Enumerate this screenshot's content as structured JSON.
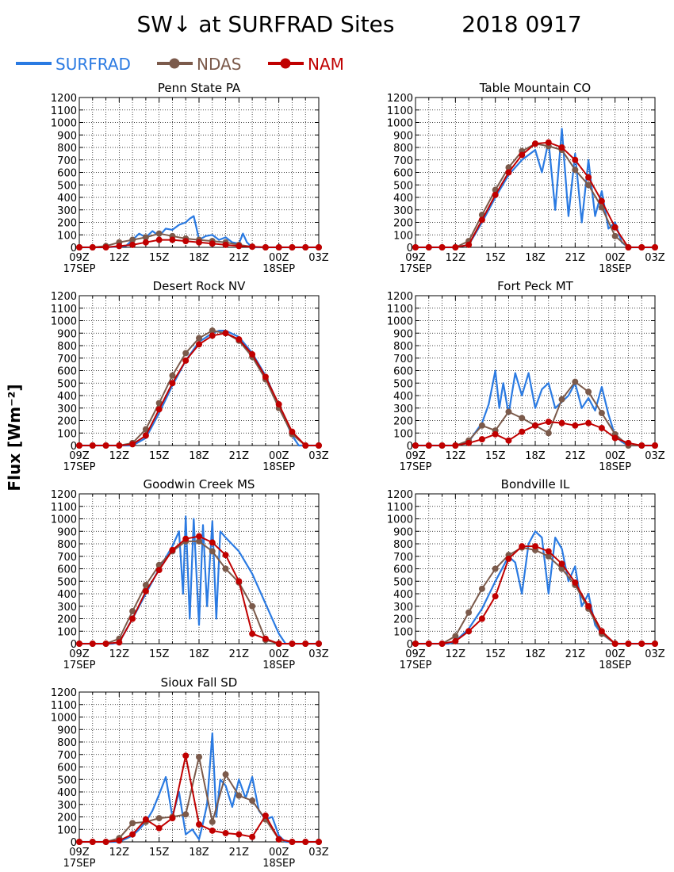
{
  "title": "SW↓ at SURFRAD Sites",
  "date": "2018 0917",
  "ylabel": "Flux [Wm⁻²]",
  "colors": {
    "surfrad": "#2a7ae2",
    "ndas": "#7b5a4b",
    "nam": "#c00000"
  },
  "legend": [
    {
      "name": "SURFRAD",
      "color": "#2a7ae2",
      "marker": false
    },
    {
      "name": "NDAS",
      "color": "#7b5a4b",
      "marker": true
    },
    {
      "name": "NAM",
      "color": "#c00000",
      "marker": true
    }
  ],
  "axes": {
    "x_tick_labels": [
      "09Z",
      "12Z",
      "15Z",
      "18Z",
      "21Z",
      "00Z",
      "03Z"
    ],
    "x_ticks": [
      9,
      12,
      15,
      18,
      21,
      24,
      27
    ],
    "x_date_labels": [
      "17SEP",
      "18SEP"
    ],
    "xlim": [
      9,
      27
    ],
    "ylim": [
      0,
      1200
    ],
    "y_ticks": [
      0,
      100,
      200,
      300,
      400,
      500,
      600,
      700,
      800,
      900,
      1000,
      1100,
      1200
    ],
    "grid": true
  },
  "chart_data": [
    {
      "type": "line",
      "title": "Penn State PA",
      "x_units": "hour UTC from 00Z 17SEP",
      "series": [
        {
          "name": "SURFRAD",
          "x": [
            9,
            11,
            12.5,
            13,
            13.5,
            14,
            14.5,
            15,
            15.5,
            16,
            16.5,
            17,
            17.3,
            17.6,
            17.8,
            18,
            18.5,
            19,
            19.5,
            20,
            20.5,
            21,
            21.3,
            21.6,
            22,
            23,
            24,
            27
          ],
          "y": [
            0,
            0,
            10,
            60,
            110,
            80,
            130,
            90,
            150,
            140,
            180,
            200,
            230,
            250,
            160,
            60,
            90,
            100,
            60,
            80,
            40,
            30,
            110,
            40,
            0,
            0,
            0,
            0
          ]
        },
        {
          "name": "NDAS",
          "x": [
            9,
            10,
            11,
            12,
            13,
            14,
            15,
            16,
            17,
            18,
            19,
            20,
            21,
            22,
            23,
            24,
            25,
            26,
            27
          ],
          "y": [
            0,
            0,
            10,
            40,
            60,
            80,
            110,
            90,
            70,
            60,
            50,
            40,
            20,
            5,
            0,
            0,
            0,
            0,
            0
          ]
        },
        {
          "name": "NAM",
          "x": [
            9,
            10,
            11,
            12,
            13,
            14,
            15,
            16,
            17,
            18,
            19,
            20,
            21,
            22,
            23,
            24,
            25,
            26,
            27
          ],
          "y": [
            0,
            0,
            0,
            10,
            20,
            40,
            60,
            60,
            50,
            40,
            30,
            20,
            10,
            5,
            0,
            0,
            0,
            0,
            0
          ]
        }
      ]
    },
    {
      "type": "line",
      "title": "Table Mountain CO",
      "x_units": "hour UTC from 00Z 17SEP",
      "series": [
        {
          "name": "SURFRAD",
          "x": [
            9,
            12,
            13,
            14,
            15,
            16,
            17,
            18,
            18.5,
            19,
            19.5,
            20,
            20.5,
            21,
            21.5,
            22,
            22.5,
            23,
            23.5,
            24,
            24.5,
            25,
            27
          ],
          "y": [
            0,
            0,
            20,
            200,
            400,
            580,
            700,
            780,
            600,
            850,
            300,
            950,
            250,
            750,
            200,
            700,
            250,
            450,
            150,
            200,
            40,
            0,
            0
          ]
        },
        {
          "name": "NDAS",
          "x": [
            9,
            10,
            11,
            12,
            13,
            14,
            15,
            16,
            17,
            18,
            19,
            20,
            21,
            22,
            23,
            24,
            25,
            26,
            27
          ],
          "y": [
            0,
            0,
            0,
            0,
            50,
            260,
            460,
            640,
            770,
            830,
            810,
            780,
            620,
            500,
            320,
            90,
            0,
            0,
            0
          ]
        },
        {
          "name": "NAM",
          "x": [
            9,
            10,
            11,
            12,
            13,
            14,
            15,
            16,
            17,
            18,
            19,
            20,
            21,
            22,
            23,
            24,
            25,
            26,
            27
          ],
          "y": [
            0,
            0,
            0,
            0,
            20,
            220,
            420,
            600,
            740,
            830,
            840,
            800,
            700,
            560,
            370,
            160,
            0,
            0,
            0
          ]
        }
      ]
    },
    {
      "type": "line",
      "title": "Desert Rock NV",
      "x_units": "hour UTC from 00Z 17SEP",
      "series": [
        {
          "name": "SURFRAD",
          "x": [
            9,
            13,
            14,
            15,
            16,
            17,
            18,
            19,
            19.5,
            20,
            21,
            22,
            23,
            24,
            25,
            25.5,
            27
          ],
          "y": [
            0,
            0,
            60,
            260,
            480,
            680,
            830,
            900,
            920,
            920,
            870,
            740,
            560,
            320,
            80,
            0,
            0
          ]
        },
        {
          "name": "NDAS",
          "x": [
            9,
            10,
            11,
            12,
            13,
            14,
            15,
            16,
            17,
            18,
            19,
            20,
            21,
            22,
            23,
            24,
            25,
            26,
            27
          ],
          "y": [
            0,
            0,
            0,
            0,
            20,
            130,
            340,
            560,
            740,
            860,
            920,
            900,
            840,
            710,
            530,
            300,
            90,
            0,
            0
          ]
        },
        {
          "name": "NAM",
          "x": [
            9,
            10,
            11,
            12,
            13,
            14,
            15,
            16,
            17,
            18,
            19,
            20,
            21,
            22,
            23,
            24,
            25,
            26,
            27
          ],
          "y": [
            0,
            0,
            0,
            0,
            10,
            80,
            290,
            500,
            680,
            810,
            880,
            900,
            850,
            730,
            550,
            330,
            110,
            0,
            0
          ]
        }
      ]
    },
    {
      "type": "line",
      "title": "Fort Peck MT",
      "x_units": "hour UTC from 00Z 17SEP",
      "series": [
        {
          "name": "SURFRAD",
          "x": [
            9,
            12,
            13,
            14,
            14.5,
            15,
            15.3,
            15.6,
            16,
            16.5,
            17,
            17.5,
            18,
            18.5,
            19,
            19.5,
            20,
            20.5,
            21,
            21.5,
            22,
            22.5,
            23,
            23.5,
            24,
            24.5,
            25,
            27
          ],
          "y": [
            0,
            0,
            30,
            180,
            330,
            600,
            300,
            500,
            250,
            580,
            400,
            580,
            300,
            450,
            500,
            300,
            350,
            400,
            500,
            300,
            380,
            280,
            470,
            250,
            80,
            30,
            0,
            0
          ]
        },
        {
          "name": "NDAS",
          "x": [
            9,
            10,
            11,
            12,
            13,
            14,
            15,
            16,
            17,
            18,
            19,
            20,
            21,
            22,
            23,
            24,
            25,
            26,
            27
          ],
          "y": [
            0,
            0,
            0,
            0,
            40,
            160,
            120,
            270,
            220,
            160,
            100,
            370,
            510,
            430,
            260,
            90,
            0,
            0,
            0
          ]
        },
        {
          "name": "NAM",
          "x": [
            9,
            10,
            11,
            12,
            13,
            14,
            15,
            16,
            17,
            18,
            19,
            20,
            21,
            22,
            23,
            24,
            25,
            26,
            27
          ],
          "y": [
            0,
            0,
            0,
            0,
            20,
            50,
            90,
            40,
            110,
            160,
            190,
            180,
            160,
            180,
            140,
            60,
            20,
            0,
            0
          ]
        }
      ]
    },
    {
      "type": "line",
      "title": "Goodwin Creek MS",
      "x_units": "hour UTC from 00Z 17SEP",
      "series": [
        {
          "name": "SURFRAD",
          "x": [
            9,
            11.5,
            12,
            13,
            14,
            15,
            16,
            16.5,
            16.8,
            17,
            17.3,
            17.6,
            18,
            18.3,
            18.6,
            19,
            19.3,
            19.6,
            20,
            21,
            22,
            23,
            24,
            24.5,
            27
          ],
          "y": [
            0,
            0,
            10,
            200,
            400,
            600,
            780,
            900,
            400,
            1020,
            200,
            1000,
            150,
            950,
            300,
            980,
            200,
            900,
            850,
            740,
            560,
            320,
            80,
            0,
            0
          ]
        },
        {
          "name": "NDAS",
          "x": [
            9,
            10,
            11,
            12,
            13,
            14,
            15,
            16,
            17,
            18,
            19,
            20,
            21,
            22,
            23,
            24,
            25,
            26,
            27
          ],
          "y": [
            0,
            0,
            0,
            40,
            260,
            470,
            630,
            740,
            820,
            820,
            740,
            600,
            490,
            300,
            30,
            0,
            0,
            0,
            0
          ]
        },
        {
          "name": "NAM",
          "x": [
            9,
            10,
            11,
            12,
            13,
            14,
            15,
            16,
            17,
            18,
            19,
            20,
            21,
            22,
            23,
            24,
            25,
            26,
            27
          ],
          "y": [
            0,
            0,
            0,
            10,
            200,
            420,
            590,
            750,
            840,
            860,
            810,
            710,
            500,
            80,
            40,
            0,
            0,
            0,
            0
          ]
        }
      ]
    },
    {
      "type": "line",
      "title": "Bondville IL",
      "x_units": "hour UTC from 00Z 17SEP",
      "series": [
        {
          "name": "SURFRAD",
          "x": [
            9,
            11.5,
            12,
            13,
            14,
            15,
            16,
            16.5,
            17,
            17.5,
            18,
            18.5,
            19,
            19.5,
            20,
            20.5,
            21,
            21.5,
            22,
            22.5,
            23,
            23.5,
            24,
            27
          ],
          "y": [
            0,
            0,
            20,
            120,
            280,
            500,
            700,
            650,
            400,
            800,
            900,
            850,
            400,
            850,
            760,
            500,
            620,
            300,
            400,
            150,
            80,
            40,
            0,
            0
          ]
        },
        {
          "name": "NDAS",
          "x": [
            9,
            10,
            11,
            12,
            13,
            14,
            15,
            16,
            17,
            18,
            19,
            20,
            21,
            22,
            23,
            24,
            25,
            26,
            27
          ],
          "y": [
            0,
            0,
            0,
            60,
            250,
            440,
            600,
            710,
            770,
            750,
            700,
            600,
            470,
            280,
            80,
            0,
            0,
            0,
            0
          ]
        },
        {
          "name": "NAM",
          "x": [
            9,
            10,
            11,
            12,
            13,
            14,
            15,
            16,
            17,
            18,
            19,
            20,
            21,
            22,
            23,
            24,
            25,
            26,
            27
          ],
          "y": [
            0,
            0,
            0,
            20,
            100,
            200,
            380,
            680,
            780,
            780,
            740,
            640,
            490,
            300,
            100,
            0,
            0,
            0,
            0
          ]
        }
      ]
    },
    {
      "type": "line",
      "title": "Sioux Fall SD",
      "x_units": "hour UTC from 00Z 17SEP",
      "series": [
        {
          "name": "SURFRAD",
          "x": [
            9,
            12,
            13,
            13.5,
            14,
            14.5,
            15,
            15.5,
            16,
            16.5,
            17,
            17.5,
            18,
            18.3,
            18.6,
            19,
            19.3,
            19.6,
            20,
            20.5,
            21,
            21.5,
            22,
            22.5,
            23,
            23.5,
            24,
            24.5,
            27
          ],
          "y": [
            0,
            0,
            50,
            100,
            160,
            250,
            380,
            520,
            200,
            400,
            60,
            100,
            20,
            150,
            300,
            870,
            200,
            500,
            450,
            280,
            500,
            350,
            520,
            250,
            180,
            200,
            50,
            0,
            0
          ]
        },
        {
          "name": "NDAS",
          "x": [
            9,
            10,
            11,
            12,
            13,
            14,
            15,
            16,
            17,
            18,
            19,
            20,
            21,
            22,
            23,
            24,
            25,
            26,
            27
          ],
          "y": [
            0,
            0,
            0,
            30,
            150,
            160,
            190,
            200,
            220,
            680,
            160,
            540,
            370,
            330,
            180,
            20,
            0,
            0,
            0
          ]
        },
        {
          "name": "NAM",
          "x": [
            9,
            10,
            11,
            12,
            13,
            14,
            15,
            16,
            17,
            18,
            19,
            20,
            21,
            22,
            23,
            24,
            25,
            26,
            27
          ],
          "y": [
            0,
            0,
            0,
            10,
            60,
            180,
            110,
            190,
            690,
            140,
            90,
            70,
            60,
            40,
            210,
            20,
            0,
            0,
            0
          ]
        }
      ]
    }
  ]
}
